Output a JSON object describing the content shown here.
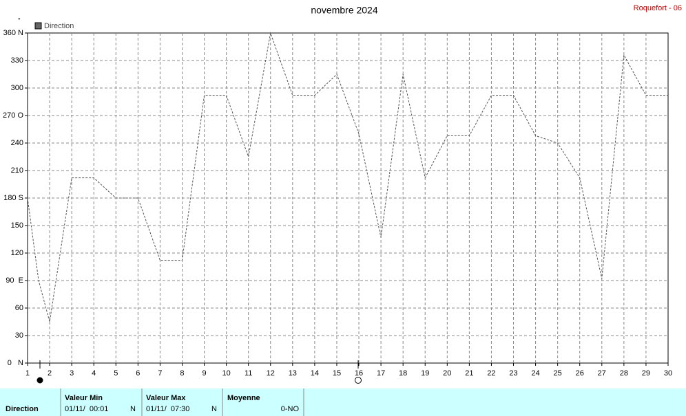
{
  "chart_data": {
    "type": "line",
    "title": "novembre 2024",
    "unit": "°",
    "x": [
      1,
      1.5,
      2,
      3,
      4,
      5,
      6,
      7,
      8,
      9,
      10,
      11,
      12,
      13,
      14,
      15,
      16,
      17,
      18,
      19,
      20,
      21,
      22,
      23,
      24,
      25,
      26,
      27,
      28,
      29,
      30
    ],
    "series": [
      {
        "name": "Direction",
        "color": "#555555",
        "values": [
          180,
          90,
          45,
          202,
          202,
          180,
          180,
          112,
          112,
          292,
          292,
          225,
          360,
          292,
          292,
          315,
          250,
          137,
          315,
          202,
          248,
          248,
          292,
          292,
          248,
          240,
          202,
          92,
          336,
          292,
          292
        ]
      }
    ],
    "xlim": [
      1,
      30
    ],
    "xticks": [
      1,
      2,
      3,
      4,
      5,
      6,
      7,
      8,
      9,
      10,
      11,
      12,
      13,
      14,
      15,
      16,
      17,
      18,
      19,
      20,
      21,
      22,
      23,
      24,
      25,
      26,
      27,
      28,
      29,
      30
    ],
    "ylim": [
      0,
      360
    ],
    "yticks": [
      {
        "value": 0,
        "label": "0   N"
      },
      30,
      60,
      {
        "value": 90,
        "label": "90  E"
      },
      120,
      150,
      {
        "value": 180,
        "label": "180 S"
      },
      210,
      240,
      {
        "value": 270,
        "label": "270 O"
      },
      300,
      330,
      {
        "value": 360,
        "label": "360 N"
      }
    ],
    "grid": true
  },
  "station": "Roquefort - 06",
  "summary": {
    "label": "Direction",
    "min": {
      "title": "Valeur Min",
      "time": "01/11/  00:01",
      "value": "N"
    },
    "max": {
      "title": "Valeur Max",
      "time": "01/11/  07:30",
      "value": "N"
    },
    "mean": {
      "title": "Moyenne",
      "value": "0-NO"
    }
  }
}
